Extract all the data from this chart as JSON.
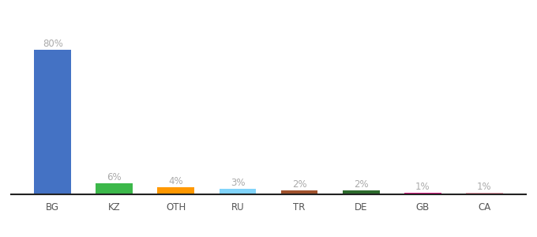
{
  "categories": [
    "BG",
    "KZ",
    "OTH",
    "RU",
    "TR",
    "DE",
    "GB",
    "CA"
  ],
  "values": [
    80,
    6,
    4,
    3,
    2,
    2,
    1,
    1
  ],
  "bar_colors": [
    "#4472C4",
    "#3CB84A",
    "#FF9800",
    "#81D4FA",
    "#A0522D",
    "#2D6B2D",
    "#E91E8C",
    "#F4A0B0"
  ],
  "labels": [
    "80%",
    "6%",
    "4%",
    "3%",
    "2%",
    "2%",
    "1%",
    "1%"
  ],
  "background_color": "#ffffff",
  "ylim": [
    0,
    92
  ],
  "label_fontsize": 8.5,
  "tick_fontsize": 8.5,
  "label_color": "#aaaaaa"
}
